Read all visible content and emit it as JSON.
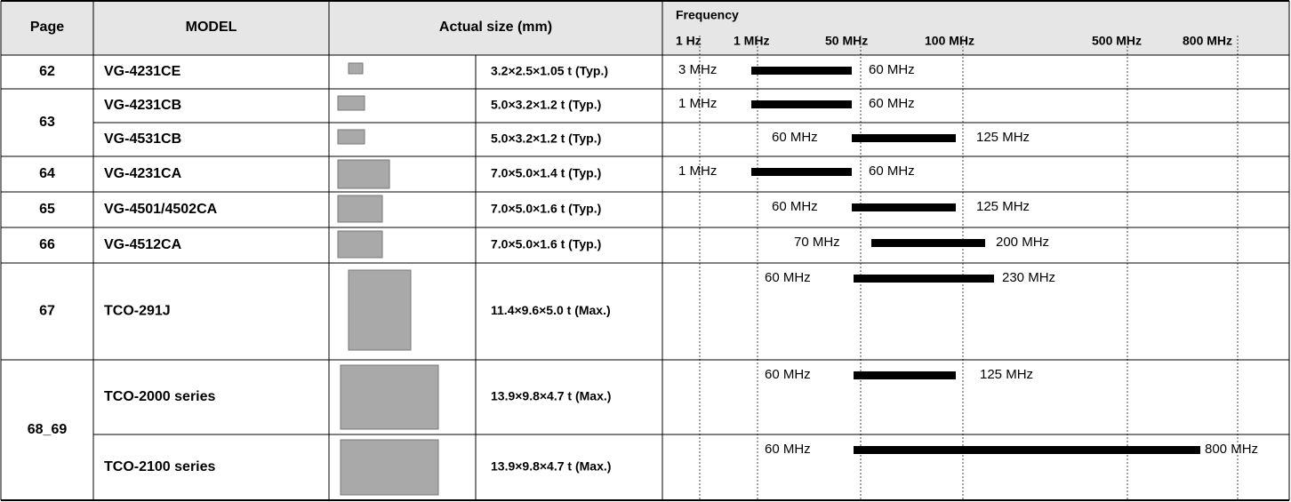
{
  "header": {
    "page": "Page",
    "model": "MODEL",
    "size": "Actual size (mm)",
    "frequency": "Frequency",
    "scale": [
      "1 Hz",
      "1 MHz",
      "50 MHz",
      "100 MHz",
      "500 MHz",
      "800 MHz"
    ]
  },
  "groups": [
    {
      "page": "62",
      "items": [
        {
          "model": "VG-4231CE",
          "size": "3.2×2.5×1.05 t (Typ.)",
          "min": "3 MHz",
          "max": "60 MHz"
        }
      ]
    },
    {
      "page": "63",
      "items": [
        {
          "model": "VG-4231CB",
          "size": "5.0×3.2×1.2 t (Typ.)",
          "min": "1 MHz",
          "max": "60 MHz"
        },
        {
          "model": "VG-4531CB",
          "size": "5.0×3.2×1.2 t (Typ.)",
          "min": "60 MHz",
          "max": "125 MHz"
        }
      ]
    },
    {
      "page": "64",
      "items": [
        {
          "model": "VG-4231CA",
          "size": "7.0×5.0×1.4 t (Typ.)",
          "min": "1 MHz",
          "max": "60 MHz"
        }
      ]
    },
    {
      "page": "65",
      "items": [
        {
          "model": "VG-4501/4502CA",
          "size": "7.0×5.0×1.6 t (Typ.)",
          "min": "60 MHz",
          "max": "125 MHz"
        }
      ]
    },
    {
      "page": "66",
      "items": [
        {
          "model": "VG-4512CA",
          "size": "7.0×5.0×1.6 t (Typ.)",
          "min": "70 MHz",
          "max": "200 MHz"
        }
      ]
    },
    {
      "page": "67",
      "items": [
        {
          "model": "TCO-291J",
          "size": "11.4×9.6×5.0 t (Max.)",
          "min": "60 MHz",
          "max": "230 MHz"
        }
      ]
    },
    {
      "page": "68_69",
      "items": [
        {
          "model": "TCO-2000 series",
          "size": "13.9×9.8×4.7 t (Max.)",
          "min": "60 MHz",
          "max": "125 MHz"
        },
        {
          "model": "TCO-2100 series",
          "size": "13.9×9.8×4.7 t (Max.)",
          "min": "60 MHz",
          "max": "800 MHz"
        }
      ]
    }
  ]
}
